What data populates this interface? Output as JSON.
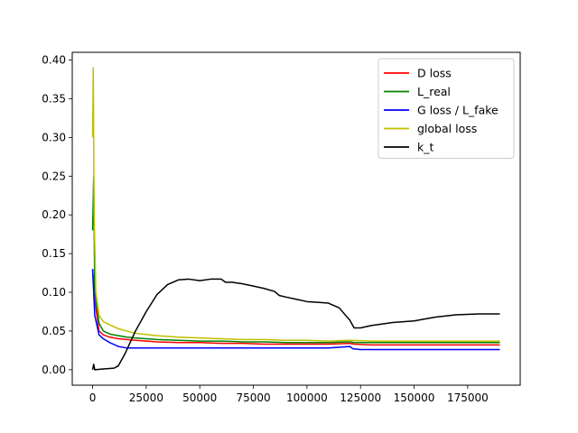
{
  "chart_data": {
    "type": "line",
    "title": "",
    "xlabel": "",
    "ylabel": "",
    "xlim": [
      -9500,
      199500
    ],
    "ylim": [
      -0.02,
      0.41
    ],
    "xticks": [
      0,
      25000,
      50000,
      75000,
      100000,
      125000,
      150000,
      175000
    ],
    "xtick_labels": [
      "0",
      "25000",
      "50000",
      "75000",
      "100000",
      "125000",
      "150000",
      "175000"
    ],
    "yticks": [
      0.0,
      0.05,
      0.1,
      0.15,
      0.2,
      0.25,
      0.3,
      0.35,
      0.4
    ],
    "ytick_labels": [
      "0.00",
      "0.05",
      "0.10",
      "0.15",
      "0.20",
      "0.25",
      "0.30",
      "0.35",
      "0.40"
    ],
    "grid": false,
    "legend_position": "top-right",
    "series": [
      {
        "name": "D loss",
        "color": "#ff0000",
        "x": [
          0,
          1000,
          3000,
          5000,
          8000,
          12000,
          16000,
          20000,
          30000,
          40000,
          50000,
          60000,
          70000,
          80000,
          90000,
          100000,
          110000,
          120000,
          122000,
          130000,
          140000,
          150000,
          160000,
          170000,
          180000,
          190000
        ],
        "y": [
          0.13,
          0.09,
          0.05,
          0.045,
          0.042,
          0.04,
          0.039,
          0.038,
          0.036,
          0.035,
          0.035,
          0.034,
          0.034,
          0.033,
          0.033,
          0.033,
          0.033,
          0.034,
          0.033,
          0.032,
          0.032,
          0.032,
          0.032,
          0.032,
          0.032,
          0.032
        ]
      },
      {
        "name": "L_real",
        "color": "#008000",
        "x": [
          0,
          500,
          1000,
          3000,
          5000,
          8000,
          12000,
          16000,
          20000,
          30000,
          40000,
          50000,
          60000,
          70000,
          80000,
          90000,
          100000,
          110000,
          120000,
          122000,
          130000,
          140000,
          150000,
          160000,
          170000,
          180000,
          190000
        ],
        "y": [
          0.18,
          0.25,
          0.1,
          0.06,
          0.05,
          0.046,
          0.044,
          0.042,
          0.041,
          0.039,
          0.038,
          0.037,
          0.037,
          0.036,
          0.036,
          0.035,
          0.035,
          0.035,
          0.036,
          0.035,
          0.035,
          0.035,
          0.035,
          0.035,
          0.035,
          0.035,
          0.035
        ]
      },
      {
        "name": "G loss / L_fake",
        "color": "#0000ff",
        "x": [
          0,
          1000,
          3000,
          5000,
          8000,
          12000,
          16000,
          20000,
          30000,
          40000,
          50000,
          60000,
          70000,
          80000,
          90000,
          100000,
          110000,
          120000,
          121500,
          125000,
          130000,
          140000,
          150000,
          160000,
          170000,
          180000,
          190000
        ],
        "y": [
          0.13,
          0.07,
          0.045,
          0.04,
          0.035,
          0.03,
          0.028,
          0.028,
          0.028,
          0.028,
          0.028,
          0.028,
          0.028,
          0.028,
          0.028,
          0.028,
          0.028,
          0.03,
          0.027,
          0.026,
          0.026,
          0.026,
          0.026,
          0.026,
          0.026,
          0.026,
          0.026
        ]
      },
      {
        "name": "global loss",
        "color": "#bfbf00",
        "x": [
          0,
          300,
          700,
          1500,
          3000,
          5000,
          8000,
          12000,
          16000,
          20000,
          30000,
          40000,
          50000,
          60000,
          70000,
          80000,
          90000,
          100000,
          110000,
          120000,
          130000,
          140000,
          150000,
          160000,
          170000,
          180000,
          190000
        ],
        "y": [
          0.3,
          0.39,
          0.2,
          0.1,
          0.07,
          0.062,
          0.058,
          0.053,
          0.05,
          0.047,
          0.044,
          0.042,
          0.041,
          0.04,
          0.039,
          0.039,
          0.038,
          0.038,
          0.037,
          0.038,
          0.037,
          0.037,
          0.037,
          0.037,
          0.037,
          0.037,
          0.037
        ]
      },
      {
        "name": "k_t",
        "color": "#000000",
        "x": [
          0,
          500,
          1000,
          5000,
          10000,
          12000,
          15000,
          20000,
          25000,
          30000,
          35000,
          40000,
          45000,
          50000,
          55000,
          60000,
          62000,
          65000,
          70000,
          75000,
          80000,
          85000,
          87000,
          90000,
          95000,
          100000,
          105000,
          110000,
          115000,
          120000,
          122000,
          125000,
          130000,
          140000,
          150000,
          160000,
          170000,
          180000,
          190000
        ],
        "y": [
          0.0,
          0.007,
          0.0,
          0.001,
          0.002,
          0.005,
          0.02,
          0.05,
          0.075,
          0.097,
          0.11,
          0.116,
          0.117,
          0.115,
          0.117,
          0.117,
          0.113,
          0.113,
          0.111,
          0.108,
          0.105,
          0.101,
          0.096,
          0.094,
          0.091,
          0.088,
          0.087,
          0.086,
          0.08,
          0.064,
          0.054,
          0.054,
          0.057,
          0.061,
          0.063,
          0.068,
          0.071,
          0.072,
          0.072
        ]
      }
    ]
  }
}
